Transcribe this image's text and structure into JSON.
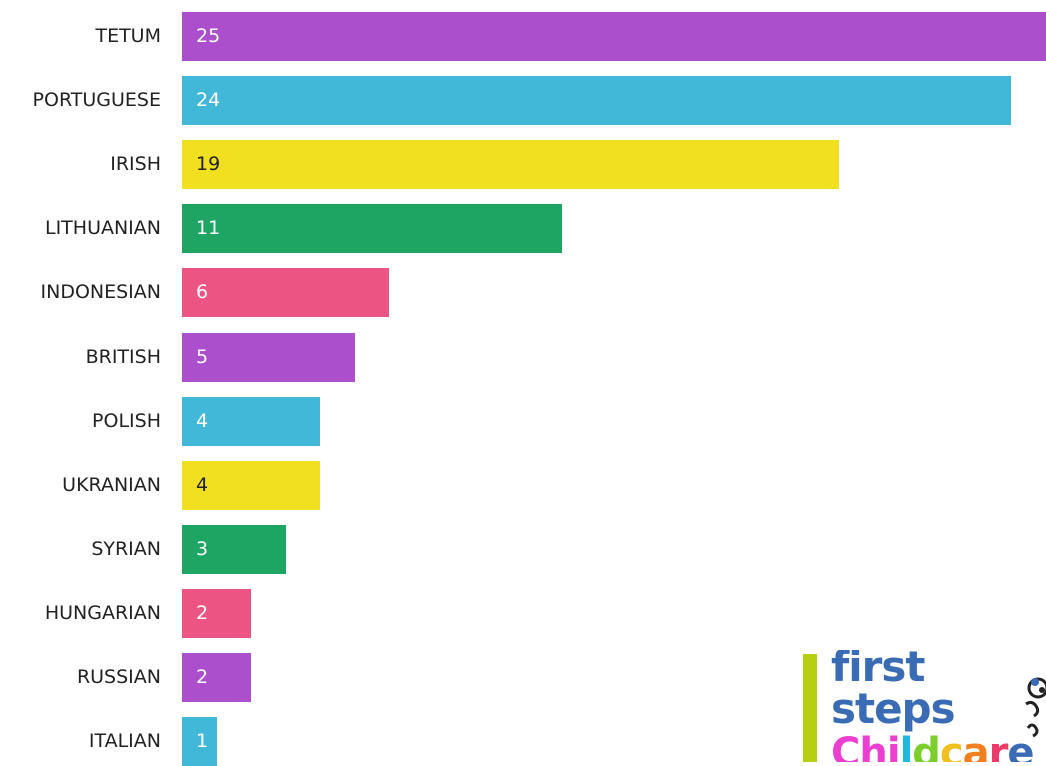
{
  "chart_data": {
    "type": "bar",
    "orientation": "horizontal",
    "categories": [
      "TETUM",
      "PORTUGUESE",
      "IRISH",
      "LITHUANIAN",
      "INDONESIAN",
      "BRITISH",
      "POLISH",
      "UKRANIAN",
      "SYRIAN",
      "HUNGARIAN",
      "RUSSIAN",
      "ITALIAN"
    ],
    "values": [
      25,
      24,
      19,
      11,
      6,
      5,
      4,
      4,
      3,
      2,
      2,
      1
    ],
    "colors": [
      "#ab4fcc",
      "#42b8d8",
      "#f0e020",
      "#1fa563",
      "#ec5484",
      "#ab4fcc",
      "#42b8d8",
      "#f0e020",
      "#1fa563",
      "#ec5484",
      "#ab4fcc",
      "#42b8d8"
    ],
    "value_label_colors": [
      "#ffffff",
      "#ffffff",
      "#222222",
      "#ffffff",
      "#ffffff",
      "#ffffff",
      "#ffffff",
      "#222222",
      "#ffffff",
      "#ffffff",
      "#ffffff",
      "#ffffff"
    ],
    "xlim": [
      0,
      25
    ],
    "grid": false,
    "legend": "none"
  },
  "logo": {
    "line1": "first",
    "line2": "steps",
    "line3_letters": [
      "C",
      "h",
      "i",
      "l",
      "d",
      "c",
      "a",
      "r",
      "e"
    ],
    "line3_colors": [
      "#ec3ed0",
      "#ec3ed0",
      "#ec3ed0",
      "#1fb8e0",
      "#7ccf2a",
      "#f0c020",
      "#f08020",
      "#ec3a6a",
      "#3a6cb5"
    ]
  }
}
